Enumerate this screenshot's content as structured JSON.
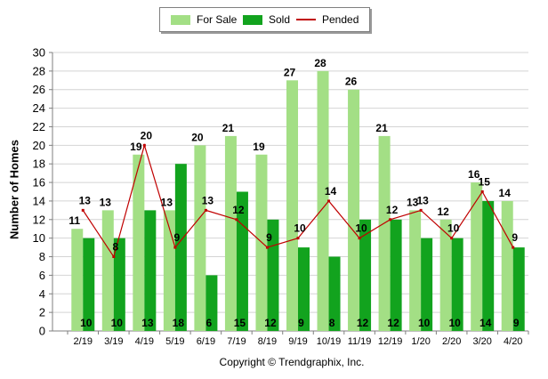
{
  "legend": {
    "for_sale": "For Sale",
    "sold": "Sold",
    "pended": "Pended"
  },
  "footer": {
    "copyright": "Copyright © Trendgraphix, Inc."
  },
  "colors": {
    "for_sale": "#a3df85",
    "sold": "#12a31e",
    "pended": "#c00000",
    "grid": "#d4d4d4"
  },
  "chart_data": {
    "type": "bar",
    "title": "",
    "xlabel": "",
    "ylabel": "Number of Homes",
    "ylim": [
      0,
      30
    ],
    "yticks": [
      0,
      2,
      4,
      6,
      8,
      10,
      12,
      14,
      16,
      18,
      20,
      22,
      24,
      26,
      28,
      30
    ],
    "grid": true,
    "legend_position": "top-center",
    "categories": [
      "2/19",
      "3/19",
      "4/19",
      "5/19",
      "6/19",
      "7/19",
      "8/19",
      "9/19",
      "10/19",
      "11/19",
      "12/19",
      "1/20",
      "2/20",
      "3/20",
      "4/20"
    ],
    "series": [
      {
        "name": "For Sale",
        "type": "bar",
        "values": [
          11,
          13,
          19,
          13,
          20,
          21,
          19,
          27,
          28,
          26,
          21,
          13,
          12,
          16,
          14
        ]
      },
      {
        "name": "Sold",
        "type": "bar",
        "values": [
          10,
          10,
          13,
          18,
          6,
          15,
          12,
          9,
          8,
          12,
          12,
          10,
          10,
          14,
          9
        ]
      },
      {
        "name": "Pended",
        "type": "line",
        "values": [
          13,
          8,
          20,
          9,
          13,
          12,
          9,
          10,
          14,
          10,
          12,
          13,
          10,
          15,
          9
        ]
      }
    ]
  }
}
